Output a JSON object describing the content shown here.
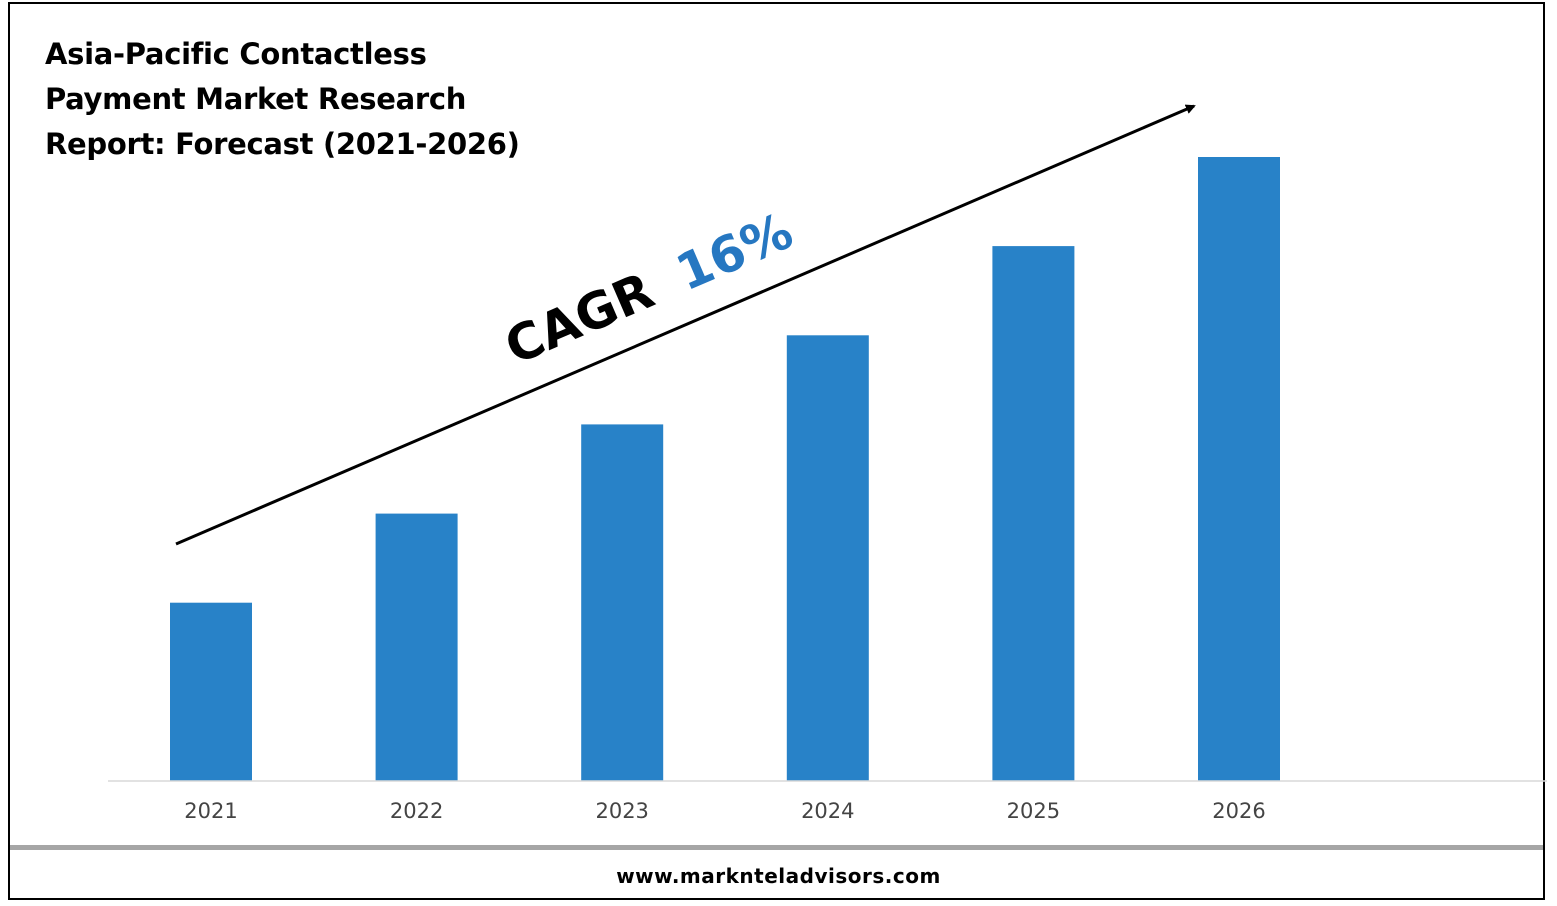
{
  "chart_data": {
    "type": "bar",
    "title": "Asia-Pacific Contactless Payment Market Research Report: Forecast (2021-2026)",
    "categories": [
      "2021",
      "2022",
      "2023",
      "2024",
      "2025",
      "2026"
    ],
    "values": [
      1,
      1.5,
      2,
      2.5,
      3,
      3.5
    ],
    "ylim": [
      0,
      3.5
    ],
    "grid": false,
    "legend": "none",
    "bar_color": "#2882c8",
    "annotation": {
      "label": "CAGR",
      "value": "16%",
      "value_color": "#2677c1",
      "arrow": "diagonal trend arrow pointing up-right"
    }
  },
  "footer": {
    "url": "www.marknteladvisors.com"
  }
}
